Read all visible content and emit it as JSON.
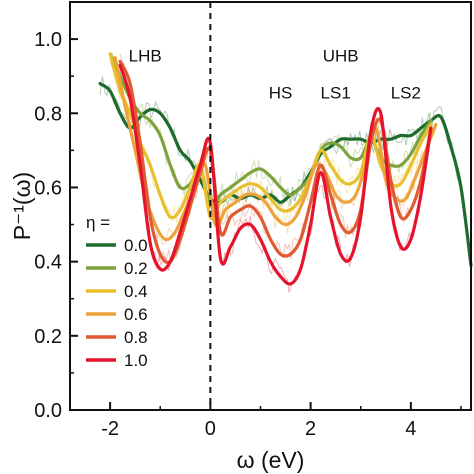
{
  "chart_data": {
    "type": "line",
    "xlabel": "ω (eV)",
    "ylabel": "P⁻¹(ω)",
    "xlim": [
      -2.8,
      5.2
    ],
    "ylim": [
      0.0,
      1.1
    ],
    "xticks": [
      -2,
      0,
      2,
      4
    ],
    "xtick_labels": [
      "-2",
      "0",
      "2",
      "4"
    ],
    "yticks": [
      0.0,
      0.2,
      0.4,
      0.6,
      0.8,
      1.0
    ],
    "ytick_labels": [
      "0.0",
      "0.2",
      "0.4",
      "0.6",
      "0.8",
      "1.0"
    ],
    "grid": false,
    "vertical_line_x": 0,
    "legend_title": "η =",
    "legend_position": "bottom-left",
    "annotations": [
      {
        "text": "LHB",
        "x": -1.3,
        "y": 0.94
      },
      {
        "text": "UHB",
        "x": 2.6,
        "y": 0.94
      },
      {
        "text": "HS",
        "x": 1.4,
        "y": 0.84
      },
      {
        "text": "LS1",
        "x": 2.5,
        "y": 0.84
      },
      {
        "text": "LS2",
        "x": 3.9,
        "y": 0.84
      }
    ],
    "series": [
      {
        "name": "0.0",
        "color": "#1e6b2e",
        "x": [
          -2.2,
          -2.0,
          -1.8,
          -1.6,
          -1.4,
          -1.2,
          -1.0,
          -0.8,
          -0.6,
          -0.4,
          -0.2,
          0.0,
          0.2,
          0.4,
          0.6,
          0.8,
          1.0,
          1.2,
          1.4,
          1.6,
          1.8,
          2.0,
          2.2,
          2.4,
          2.6,
          2.8,
          3.0,
          3.2,
          3.4,
          3.6,
          3.8,
          4.0,
          4.2,
          4.4,
          4.6,
          4.8,
          5.0,
          5.2
        ],
        "y": [
          0.88,
          0.86,
          0.8,
          0.76,
          0.79,
          0.81,
          0.8,
          0.76,
          0.7,
          0.67,
          0.62,
          0.57,
          0.56,
          0.58,
          0.57,
          0.58,
          0.57,
          0.58,
          0.56,
          0.58,
          0.6,
          0.64,
          0.69,
          0.71,
          0.73,
          0.73,
          0.73,
          0.72,
          0.73,
          0.73,
          0.74,
          0.74,
          0.76,
          0.78,
          0.79,
          0.71,
          0.6,
          0.39
        ]
      },
      {
        "name": "0.2",
        "color": "#7fa33c",
        "x": [
          -2.0,
          -1.8,
          -1.6,
          -1.4,
          -1.2,
          -1.0,
          -0.8,
          -0.6,
          -0.4,
          -0.2,
          0.0,
          0.2,
          0.4,
          0.6,
          0.8,
          1.0,
          1.2,
          1.4,
          1.6,
          1.8,
          2.0,
          2.2,
          2.4,
          2.6,
          2.8,
          3.0,
          3.2,
          3.4,
          3.6,
          3.8,
          4.0,
          4.2,
          4.4
        ],
        "y": [
          0.96,
          0.9,
          0.84,
          0.8,
          0.78,
          0.74,
          0.66,
          0.6,
          0.61,
          0.65,
          0.55,
          0.58,
          0.6,
          0.62,
          0.64,
          0.65,
          0.63,
          0.6,
          0.58,
          0.6,
          0.63,
          0.7,
          0.72,
          0.71,
          0.68,
          0.68,
          0.73,
          0.68,
          0.66,
          0.66,
          0.69,
          0.74,
          0.78
        ]
      },
      {
        "name": "0.4",
        "color": "#e8c02e",
        "x": [
          -2.0,
          -1.8,
          -1.6,
          -1.4,
          -1.2,
          -1.0,
          -0.8,
          -0.6,
          -0.4,
          -0.2,
          0.0,
          0.2,
          0.4,
          0.6,
          0.8,
          1.0,
          1.2,
          1.4,
          1.6,
          1.8,
          2.0,
          2.2,
          2.4,
          2.6,
          2.8,
          3.0,
          3.2,
          3.4,
          3.6,
          3.8,
          4.0,
          4.2,
          4.4
        ],
        "y": [
          0.96,
          0.86,
          0.8,
          0.72,
          0.66,
          0.58,
          0.52,
          0.54,
          0.6,
          0.66,
          0.52,
          0.56,
          0.58,
          0.6,
          0.61,
          0.6,
          0.57,
          0.54,
          0.54,
          0.57,
          0.63,
          0.7,
          0.66,
          0.62,
          0.61,
          0.64,
          0.74,
          0.66,
          0.61,
          0.61,
          0.66,
          0.72,
          0.77
        ]
      },
      {
        "name": "0.6",
        "color": "#eda23a",
        "x": [
          -1.9,
          -1.7,
          -1.5,
          -1.3,
          -1.1,
          -0.9,
          -0.7,
          -0.5,
          -0.3,
          -0.1,
          0.1,
          0.3,
          0.5,
          0.7,
          0.9,
          1.1,
          1.3,
          1.5,
          1.7,
          1.9,
          2.1,
          2.3,
          2.5,
          2.7,
          2.9,
          3.1,
          3.3,
          3.5,
          3.7,
          3.9,
          4.1,
          4.3,
          4.5
        ],
        "y": [
          0.95,
          0.82,
          0.7,
          0.58,
          0.5,
          0.46,
          0.48,
          0.54,
          0.6,
          0.66,
          0.5,
          0.54,
          0.56,
          0.58,
          0.58,
          0.56,
          0.52,
          0.5,
          0.52,
          0.58,
          0.66,
          0.64,
          0.58,
          0.56,
          0.58,
          0.66,
          0.76,
          0.62,
          0.57,
          0.57,
          0.63,
          0.7,
          0.77
        ]
      },
      {
        "name": "0.8",
        "color": "#e05a32",
        "x": [
          -1.8,
          -1.6,
          -1.4,
          -1.2,
          -1.0,
          -0.8,
          -0.6,
          -0.4,
          -0.2,
          0.0,
          0.2,
          0.4,
          0.6,
          0.8,
          1.0,
          1.2,
          1.4,
          1.6,
          1.8,
          2.0,
          2.2,
          2.4,
          2.6,
          2.8,
          3.0,
          3.2,
          3.4,
          3.6,
          3.8,
          4.0,
          4.2,
          4.4
        ],
        "y": [
          0.94,
          0.88,
          0.72,
          0.52,
          0.42,
          0.4,
          0.46,
          0.55,
          0.64,
          0.7,
          0.48,
          0.52,
          0.54,
          0.55,
          0.52,
          0.46,
          0.42,
          0.42,
          0.46,
          0.56,
          0.66,
          0.58,
          0.5,
          0.48,
          0.54,
          0.72,
          0.78,
          0.62,
          0.52,
          0.54,
          0.62,
          0.76
        ]
      },
      {
        "name": "1.0",
        "color": "#e3142c",
        "x": [
          -1.8,
          -1.6,
          -1.4,
          -1.2,
          -1.0,
          -0.8,
          -0.6,
          -0.4,
          -0.2,
          0.0,
          0.2,
          0.4,
          0.6,
          0.8,
          1.0,
          1.2,
          1.4,
          1.6,
          1.8,
          2.0,
          2.2,
          2.4,
          2.6,
          2.8,
          3.0,
          3.2,
          3.4,
          3.6,
          3.8,
          4.0,
          4.2,
          4.4
        ],
        "y": [
          0.93,
          0.84,
          0.66,
          0.45,
          0.38,
          0.4,
          0.48,
          0.57,
          0.66,
          0.72,
          0.41,
          0.44,
          0.49,
          0.5,
          0.46,
          0.4,
          0.36,
          0.34,
          0.38,
          0.5,
          0.64,
          0.52,
          0.42,
          0.41,
          0.52,
          0.75,
          0.8,
          0.55,
          0.44,
          0.46,
          0.58,
          0.76
        ]
      }
    ]
  }
}
